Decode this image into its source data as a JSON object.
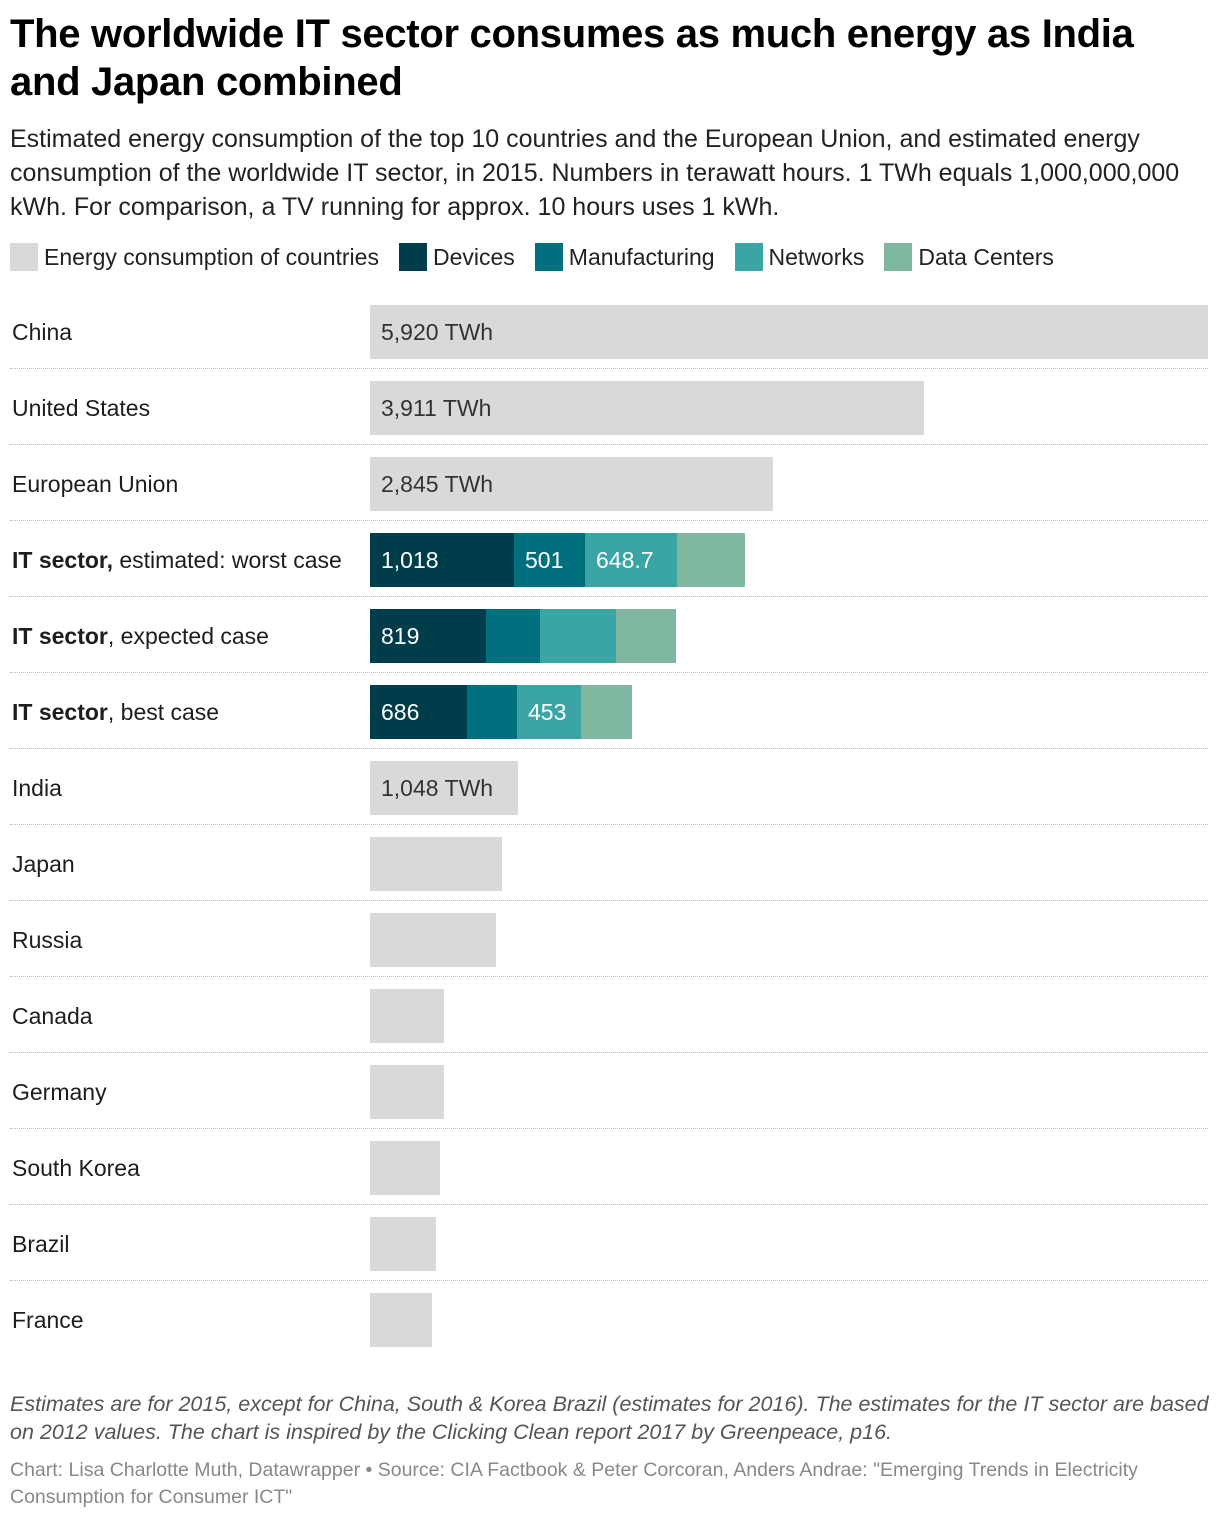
{
  "header": {
    "title": "The worldwide IT sector consumes as much energy as India and Japan combined",
    "subtitle": "Estimated energy consumption of the top 10 countries and the European Union, and estimated energy consumption of the worldwide IT sector, in 2015. Numbers in terawatt hours. 1 TWh equals 1,000,000,000 kWh. For comparison, a TV running for approx. 10 hours uses 1 kWh."
  },
  "legend": [
    {
      "label": "Energy consumption of countries",
      "color": "#d9d9d9"
    },
    {
      "label": "Devices",
      "color": "#003d4a"
    },
    {
      "label": "Manufacturing",
      "color": "#00707f"
    },
    {
      "label": "Networks",
      "color": "#3ba5a5"
    },
    {
      "label": "Data Centers",
      "color": "#7fb7a1"
    }
  ],
  "chart_data": {
    "type": "bar",
    "orientation": "horizontal",
    "stacked": true,
    "xlim": [
      0,
      5920
    ],
    "unit": "TWh",
    "series_names": [
      "Energy consumption of countries",
      "Devices",
      "Manufacturing",
      "Networks",
      "Data Centers"
    ],
    "rows": [
      {
        "label_bold": "",
        "label_rest": "China",
        "segments": [
          {
            "series": "Energy consumption of countries",
            "value": 5920,
            "label": "5,920 TWh"
          }
        ]
      },
      {
        "label_bold": "",
        "label_rest": "United States",
        "segments": [
          {
            "series": "Energy consumption of countries",
            "value": 3911,
            "label": "3,911 TWh"
          }
        ]
      },
      {
        "label_bold": "",
        "label_rest": "European Union",
        "segments": [
          {
            "series": "Energy consumption of countries",
            "value": 2845,
            "label": "2,845 TWh"
          }
        ]
      },
      {
        "label_bold": "IT sector,",
        "label_rest": " estimated: worst case",
        "segments": [
          {
            "series": "Devices",
            "value": 1018,
            "label": "1,018"
          },
          {
            "series": "Manufacturing",
            "value": 501,
            "label": "501"
          },
          {
            "series": "Networks",
            "value": 648.7,
            "label": "648.7"
          },
          {
            "series": "Data Centers",
            "value": 480,
            "label": ""
          }
        ]
      },
      {
        "label_bold": "IT sector",
        "label_rest": ", expected case",
        "segments": [
          {
            "series": "Devices",
            "value": 819,
            "label": "819"
          },
          {
            "series": "Manufacturing",
            "value": 380,
            "label": ""
          },
          {
            "series": "Networks",
            "value": 540,
            "label": ""
          },
          {
            "series": "Data Centers",
            "value": 420,
            "label": ""
          }
        ]
      },
      {
        "label_bold": "IT sector",
        "label_rest": ", best case",
        "segments": [
          {
            "series": "Devices",
            "value": 686,
            "label": "686"
          },
          {
            "series": "Manufacturing",
            "value": 355,
            "label": ""
          },
          {
            "series": "Networks",
            "value": 453,
            "label": "453"
          },
          {
            "series": "Data Centers",
            "value": 355,
            "label": ""
          }
        ]
      },
      {
        "label_bold": "",
        "label_rest": "India",
        "segments": [
          {
            "series": "Energy consumption of countries",
            "value": 1048,
            "label": "1,048 TWh"
          }
        ]
      },
      {
        "label_bold": "",
        "label_rest": "Japan",
        "segments": [
          {
            "series": "Energy consumption of countries",
            "value": 934,
            "label": ""
          }
        ]
      },
      {
        "label_bold": "",
        "label_rest": "Russia",
        "segments": [
          {
            "series": "Energy consumption of countries",
            "value": 890,
            "label": ""
          }
        ]
      },
      {
        "label_bold": "",
        "label_rest": "Canada",
        "segments": [
          {
            "series": "Energy consumption of countries",
            "value": 522,
            "label": ""
          }
        ]
      },
      {
        "label_bold": "",
        "label_rest": "Germany",
        "segments": [
          {
            "series": "Energy consumption of countries",
            "value": 522,
            "label": ""
          }
        ]
      },
      {
        "label_bold": "",
        "label_rest": "South Korea",
        "segments": [
          {
            "series": "Energy consumption of countries",
            "value": 495,
            "label": ""
          }
        ]
      },
      {
        "label_bold": "",
        "label_rest": "Brazil",
        "segments": [
          {
            "series": "Energy consumption of countries",
            "value": 468,
            "label": ""
          }
        ]
      },
      {
        "label_bold": "",
        "label_rest": "France",
        "segments": [
          {
            "series": "Energy consumption of countries",
            "value": 440,
            "label": ""
          }
        ]
      }
    ]
  },
  "footer": {
    "notes": "Estimates are for 2015, except for China, South & Korea Brazil (estimates for 2016). The estimates for the IT sector are based on 2012 values. The chart is inspired by the Clicking Clean report 2017 by Greenpeace, p16.",
    "byline": "Chart: Lisa Charlotte Muth, Datawrapper • Source: CIA Factbook & Peter Corcoran, Anders Andrae: \"Emerging Trends in Electricity Consumption for Consumer ICT\""
  }
}
